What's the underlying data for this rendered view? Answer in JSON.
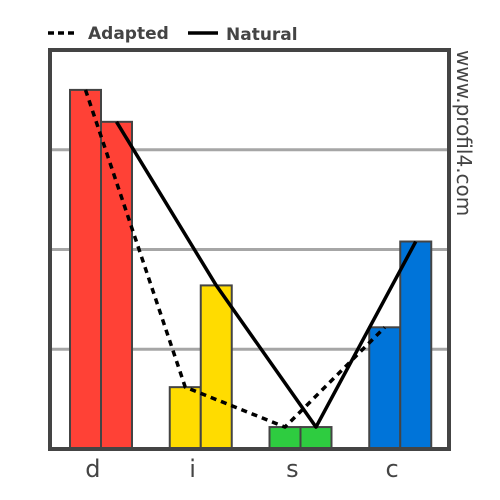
{
  "chart_data": {
    "type": "bar",
    "categories": [
      "d",
      "i",
      "s",
      "c"
    ],
    "colors": [
      "#ff4136",
      "#ffdc00",
      "#2ecc40",
      "#0074d9"
    ],
    "series": [
      {
        "name": "Adapted",
        "values": [
          90,
          15.5,
          5.5,
          30.5
        ],
        "line_style": "dashed"
      },
      {
        "name": "Natural",
        "values": [
          82,
          41,
          5.5,
          52
        ],
        "line_style": "solid"
      }
    ],
    "ylim": [
      0,
      100
    ],
    "gridlines": [
      25,
      50,
      75
    ],
    "legend_position": "top-left",
    "watermark": "www.profil4.com"
  }
}
